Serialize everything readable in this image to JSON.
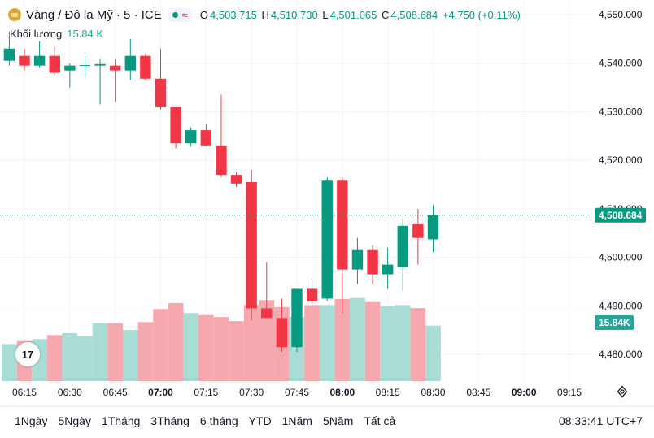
{
  "header": {
    "title": "Vàng / Đô la Mỹ · 5 · ICE",
    "open_label": "O",
    "open": "4,503.715",
    "high_label": "H",
    "high": "4,510.730",
    "low_label": "L",
    "low": "4,501.065",
    "close_label": "C",
    "close": "4,508.684",
    "change": "+4.750 (+0.11%)"
  },
  "volume": {
    "label": "Khối lượng",
    "value": "15.84 K"
  },
  "timeframes": [
    "1Ngày",
    "5Ngày",
    "1Tháng",
    "3Tháng",
    "6 tháng",
    "YTD",
    "1Năm",
    "5Năm",
    "Tất cả"
  ],
  "clock": "08:33:41 UTC+7",
  "logo_text": "17",
  "colors": {
    "up": "#089981",
    "down": "#f23645",
    "up_vol": "#a8dcd4",
    "down_vol": "#f5a9ae"
  },
  "chart_data": {
    "type": "candlestick",
    "y_ticks": [
      "4,480.000",
      "4,490.000",
      "4,500.000",
      "4,510.000",
      "4,520.000",
      "4,530.000",
      "4,540.000",
      "4,550.000"
    ],
    "ylim": [
      4474.5,
      4553
    ],
    "x_ticks": [
      {
        "label": "06:15",
        "time": "06:15",
        "bold": false
      },
      {
        "label": "06:30",
        "time": "06:30",
        "bold": false
      },
      {
        "label": "06:45",
        "time": "06:45",
        "bold": false
      },
      {
        "label": "07:00",
        "time": "07:00",
        "bold": true
      },
      {
        "label": "07:15",
        "time": "07:15",
        "bold": false
      },
      {
        "label": "07:30",
        "time": "07:30",
        "bold": false
      },
      {
        "label": "07:45",
        "time": "07:45",
        "bold": false
      },
      {
        "label": "08:00",
        "time": "08:00",
        "bold": true
      },
      {
        "label": "08:15",
        "time": "08:15",
        "bold": false
      },
      {
        "label": "08:30",
        "time": "08:30",
        "bold": false
      },
      {
        "label": "08:45",
        "time": "08:45",
        "bold": false
      },
      {
        "label": "09:00",
        "time": "09:00",
        "bold": true
      },
      {
        "label": "09:15",
        "time": "09:15",
        "bold": false
      }
    ],
    "last_price_label": "4,508.684",
    "last_price": 4508.684,
    "volume_label": "15.84K",
    "volume_value": 15.84,
    "candles": [
      {
        "t": "06:10",
        "o": 4540.5,
        "h": 4546.5,
        "l": 4539.5,
        "c": 4543.0,
        "v": 14.0
      },
      {
        "t": "06:15",
        "o": 4541.5,
        "h": 4543.0,
        "l": 4538.5,
        "c": 4539.5,
        "v": 14.3
      },
      {
        "t": "06:20",
        "o": 4539.5,
        "h": 4544.5,
        "l": 4539.0,
        "c": 4541.5,
        "v": 14.5
      },
      {
        "t": "06:25",
        "o": 4541.5,
        "h": 4543.5,
        "l": 4537.5,
        "c": 4538.0,
        "v": 14.9
      },
      {
        "t": "06:30",
        "o": 4538.5,
        "h": 4540.0,
        "l": 4535.0,
        "c": 4539.5,
        "v": 15.1
      },
      {
        "t": "06:35",
        "o": 4539.5,
        "h": 4541.5,
        "l": 4537.5,
        "c": 4539.6,
        "v": 14.8
      },
      {
        "t": "06:40",
        "o": 4539.5,
        "h": 4541.0,
        "l": 4531.5,
        "c": 4539.8,
        "v": 16.1
      },
      {
        "t": "06:45",
        "o": 4539.5,
        "h": 4541.0,
        "l": 4532.0,
        "c": 4538.5,
        "v": 16.1
      },
      {
        "t": "06:50",
        "o": 4538.5,
        "h": 4545.0,
        "l": 4536.5,
        "c": 4541.5,
        "v": 15.4
      },
      {
        "t": "06:55",
        "o": 4541.5,
        "h": 4542.0,
        "l": 4536.5,
        "c": 4536.8,
        "v": 16.2
      },
      {
        "t": "07:00",
        "o": 4536.8,
        "h": 4543.0,
        "l": 4530.5,
        "c": 4530.9,
        "v": 17.5
      },
      {
        "t": "07:05",
        "o": 4530.9,
        "h": 4531.0,
        "l": 4522.5,
        "c": 4523.5,
        "v": 18.1
      },
      {
        "t": "07:10",
        "o": 4523.5,
        "h": 4526.8,
        "l": 4522.8,
        "c": 4526.2,
        "v": 17.1
      },
      {
        "t": "07:15",
        "o": 4526.2,
        "h": 4527.5,
        "l": 4522.8,
        "c": 4522.9,
        "v": 16.9
      },
      {
        "t": "07:20",
        "o": 4522.9,
        "h": 4533.5,
        "l": 4516.5,
        "c": 4517.0,
        "v": 16.7
      },
      {
        "t": "07:25",
        "o": 4517.0,
        "h": 4517.5,
        "l": 4514.5,
        "c": 4515.2,
        "v": 16.3
      },
      {
        "t": "07:30",
        "o": 4515.5,
        "h": 4518.0,
        "l": 4487.0,
        "c": 4489.5,
        "v": 17.9
      },
      {
        "t": "07:35",
        "o": 4489.5,
        "h": 4499.0,
        "l": 4488.0,
        "c": 4487.5,
        "v": 18.4
      },
      {
        "t": "07:40",
        "o": 4487.5,
        "h": 4491.5,
        "l": 4480.5,
        "c": 4481.5,
        "v": 17.7
      },
      {
        "t": "07:45",
        "o": 4481.5,
        "h": 4493.5,
        "l": 4480.5,
        "c": 4493.5,
        "v": 16.7
      },
      {
        "t": "07:50",
        "o": 4493.5,
        "h": 4495.5,
        "l": 4490.0,
        "c": 4490.9,
        "v": 17.9
      },
      {
        "t": "07:55",
        "o": 4491.5,
        "h": 4516.5,
        "l": 4491.0,
        "c": 4515.8,
        "v": 17.9
      },
      {
        "t": "08:00",
        "o": 4515.8,
        "h": 4516.5,
        "l": 4488.5,
        "c": 4497.5,
        "v": 18.5
      },
      {
        "t": "08:05",
        "o": 4497.5,
        "h": 4504.0,
        "l": 4494.5,
        "c": 4501.5,
        "v": 18.6
      },
      {
        "t": "08:10",
        "o": 4501.5,
        "h": 4502.5,
        "l": 4494.5,
        "c": 4496.5,
        "v": 18.2
      },
      {
        "t": "08:15",
        "o": 4496.5,
        "h": 4502.0,
        "l": 4493.5,
        "c": 4498.5,
        "v": 17.8
      },
      {
        "t": "08:20",
        "o": 4498.0,
        "h": 4508.0,
        "l": 4493.0,
        "c": 4506.5,
        "v": 17.9
      },
      {
        "t": "08:25",
        "o": 4506.8,
        "h": 4510.0,
        "l": 4498.5,
        "c": 4504.0,
        "v": 17.6
      },
      {
        "t": "08:30",
        "o": 4503.715,
        "h": 4510.73,
        "l": 4501.065,
        "c": 4508.684,
        "v": 15.84
      }
    ]
  }
}
